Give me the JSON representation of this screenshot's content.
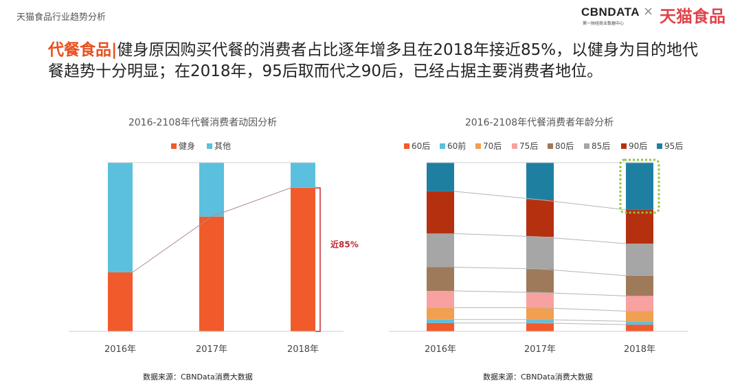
{
  "header": {
    "section_title": "天猫食品行业趋势分析",
    "logo_cbndata": "CBNDATA",
    "logo_cbndata_sub": "第一财经商业数据中心",
    "logo_separator": "×",
    "logo_tmall": "天猫食品"
  },
  "headline": {
    "tag": "代餐食品|",
    "text": "健身原因购买代餐的消费者占比逐年增多且在2018年接近85%，以健身为目的地代餐趋势十分明显；在2018年，95后取而代之90后，已经占据主要消费者地位。"
  },
  "colors": {
    "fitness": "#f15a2b",
    "other": "#5bc0de",
    "bracket": "#c0282f",
    "highlight_border": "#8dc63f",
    "gen60": "#f15a2b",
    "gen60q": "#5bc0de",
    "gen70": "#f0a050",
    "gen75": "#f7a1a1",
    "gen80": "#9e7a5a",
    "gen85": "#a6a6a6",
    "gen90": "#b5300f",
    "gen95": "#1f7fa1"
  },
  "chart_data": [
    {
      "type": "bar",
      "stacked": true,
      "title": "2016-2108年代餐消费者动因分析",
      "categories": [
        "2016年",
        "2017年",
        "2018年"
      ],
      "series": [
        {
          "name": "健身",
          "values": [
            35,
            68,
            85
          ]
        },
        {
          "name": "其他",
          "values": [
            65,
            32,
            15
          ]
        }
      ],
      "ylim": [
        0,
        100
      ],
      "annotation": "近85%",
      "source": "数据来源：CBNData消费大数据"
    },
    {
      "type": "bar",
      "stacked": true,
      "title": "2016-2108年代餐消费者年龄分析",
      "categories": [
        "2016年",
        "2017年",
        "2018年"
      ],
      "series": [
        {
          "name": "60后",
          "values": [
            5,
            5,
            4
          ]
        },
        {
          "name": "60前",
          "values": [
            2,
            2,
            2
          ]
        },
        {
          "name": "70后",
          "values": [
            7,
            7,
            6
          ]
        },
        {
          "name": "75后",
          "values": [
            10,
            9,
            9
          ]
        },
        {
          "name": "80后",
          "values": [
            14,
            14,
            12
          ]
        },
        {
          "name": "85后",
          "values": [
            20,
            19,
            19
          ]
        },
        {
          "name": "90后",
          "values": [
            25,
            22,
            20
          ]
        },
        {
          "name": "95后",
          "values": [
            17,
            22,
            28
          ]
        }
      ],
      "ylim": [
        0,
        100
      ],
      "source": "数据来源：CBNData消费大数据"
    }
  ]
}
